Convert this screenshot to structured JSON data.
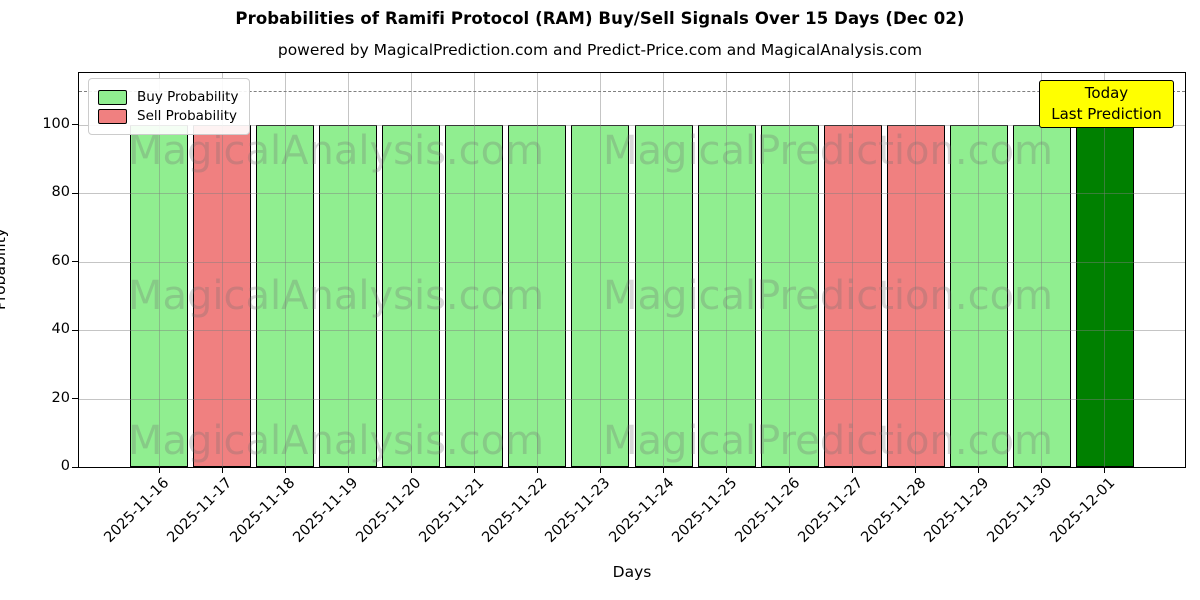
{
  "chart_data": {
    "type": "bar",
    "title": "Probabilities of Ramifi Protocol (RAM) Buy/Sell Signals Over 15 Days (Dec 02)",
    "subtitle": "powered by MagicalPrediction.com and Predict-Price.com and MagicalAnalysis.com",
    "xlabel": "Days",
    "ylabel": "Probability",
    "ylim": [
      0,
      115
    ],
    "yticks": [
      0,
      20,
      40,
      60,
      80,
      100
    ],
    "grid": true,
    "legend_position": "upper-left",
    "dashed_threshold_y": 110,
    "categories": [
      "2025-11-16",
      "2025-11-17",
      "2025-11-18",
      "2025-11-19",
      "2025-11-20",
      "2025-11-21",
      "2025-11-22",
      "2025-11-23",
      "2025-11-24",
      "2025-11-25",
      "2025-11-26",
      "2025-11-27",
      "2025-11-28",
      "2025-11-29",
      "2025-11-30",
      "2025-12-01"
    ],
    "bars": [
      {
        "date": "2025-11-16",
        "signal": "buy",
        "value": 100
      },
      {
        "date": "2025-11-17",
        "signal": "sell",
        "value": 100
      },
      {
        "date": "2025-11-18",
        "signal": "buy",
        "value": 100
      },
      {
        "date": "2025-11-19",
        "signal": "buy",
        "value": 100
      },
      {
        "date": "2025-11-20",
        "signal": "buy",
        "value": 100
      },
      {
        "date": "2025-11-21",
        "signal": "buy",
        "value": 100
      },
      {
        "date": "2025-11-22",
        "signal": "buy",
        "value": 100
      },
      {
        "date": "2025-11-23",
        "signal": "buy",
        "value": 100
      },
      {
        "date": "2025-11-24",
        "signal": "buy",
        "value": 100
      },
      {
        "date": "2025-11-25",
        "signal": "buy",
        "value": 100
      },
      {
        "date": "2025-11-26",
        "signal": "buy",
        "value": 100
      },
      {
        "date": "2025-11-27",
        "signal": "sell",
        "value": 100
      },
      {
        "date": "2025-11-28",
        "signal": "sell",
        "value": 100
      },
      {
        "date": "2025-11-29",
        "signal": "buy",
        "value": 100
      },
      {
        "date": "2025-11-30",
        "signal": "buy",
        "value": 100
      },
      {
        "date": "2025-12-01",
        "signal": "last_prediction",
        "value": 100
      }
    ],
    "legend": [
      {
        "label": "Buy Probability",
        "color": "#90ee90"
      },
      {
        "label": "Sell Probability",
        "color": "#f08080"
      }
    ],
    "colors": {
      "buy": "#90ee90",
      "sell": "#f08080",
      "last_prediction": "#008000",
      "bar_edge": "#000000",
      "annotation_bg": "#ffff00",
      "grid": "#7f7f7f",
      "dashed_line": "#7f7f7f"
    },
    "annotation": {
      "line1": "Today",
      "line2": "Last Prediction"
    },
    "watermarks": {
      "left_text": "MagicalAnalysis.com",
      "right_text": "MagicalPrediction.com",
      "rows": 3
    }
  }
}
